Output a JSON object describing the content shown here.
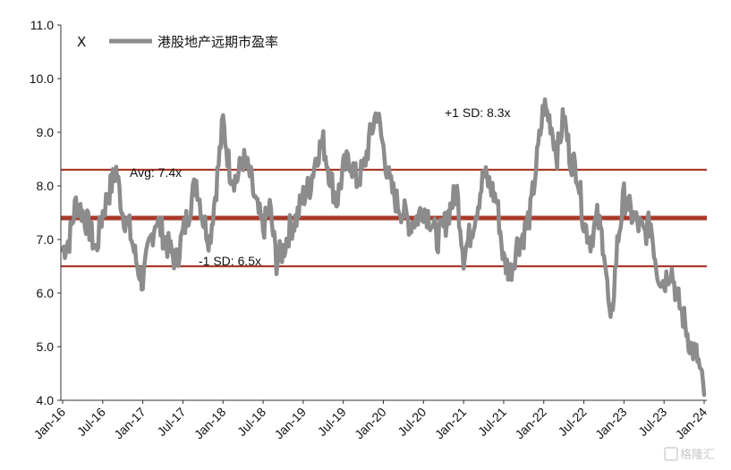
{
  "chart_data": {
    "type": "line",
    "title": "",
    "xlabel": "",
    "ylabel": "",
    "ylim": [
      4.0,
      11.0
    ],
    "y_ticks": [
      "11.0",
      "10.0",
      "9.0",
      "8.0",
      "7.0",
      "6.0",
      "5.0",
      "4.0"
    ],
    "x_ticks": [
      "Jan-16",
      "Jul-16",
      "Jan-17",
      "Jul-17",
      "Jan-18",
      "Jul-18",
      "Jan-19",
      "Jul-19",
      "Jan-20",
      "Jul-20",
      "Jan-21",
      "Jul-21",
      "Jan-22",
      "Jul-22",
      "Jan-23",
      "Jul-23",
      "Jan-24"
    ],
    "legend": {
      "marker": "X",
      "label": "港股地产远期市盈率",
      "placement": "top-left"
    },
    "series": [
      {
        "name": "港股地产远期市盈率",
        "color": "#8c8c8c",
        "x": [
          "2016-01",
          "2016-02",
          "2016-03",
          "2016-04",
          "2016-05",
          "2016-06",
          "2016-07",
          "2016-08",
          "2016-09",
          "2016-10",
          "2016-11",
          "2016-12",
          "2017-01",
          "2017-02",
          "2017-03",
          "2017-04",
          "2017-05",
          "2017-06",
          "2017-07",
          "2017-08",
          "2017-09",
          "2017-10",
          "2017-11",
          "2017-12",
          "2018-01",
          "2018-02",
          "2018-03",
          "2018-04",
          "2018-05",
          "2018-06",
          "2018-07",
          "2018-08",
          "2018-09",
          "2018-10",
          "2018-11",
          "2018-12",
          "2019-01",
          "2019-02",
          "2019-03",
          "2019-04",
          "2019-05",
          "2019-06",
          "2019-07",
          "2019-08",
          "2019-09",
          "2019-10",
          "2019-11",
          "2019-12",
          "2020-01",
          "2020-02",
          "2020-03",
          "2020-04",
          "2020-05",
          "2020-06",
          "2020-07",
          "2020-08",
          "2020-09",
          "2020-10",
          "2020-11",
          "2020-12",
          "2021-01",
          "2021-02",
          "2021-03",
          "2021-04",
          "2021-05",
          "2021-06",
          "2021-07",
          "2021-08",
          "2021-09",
          "2021-10",
          "2021-11",
          "2021-12",
          "2022-01",
          "2022-02",
          "2022-03",
          "2022-04",
          "2022-05",
          "2022-06",
          "2022-07",
          "2022-08",
          "2022-09",
          "2022-10",
          "2022-11",
          "2022-12",
          "2023-01",
          "2023-02",
          "2023-03",
          "2023-04",
          "2023-05",
          "2023-06",
          "2023-07",
          "2023-08",
          "2023-09",
          "2023-10",
          "2023-11",
          "2023-12",
          "2024-01"
        ],
        "values": [
          6.8,
          7.0,
          7.7,
          7.5,
          7.2,
          6.8,
          7.5,
          7.9,
          8.3,
          7.5,
          7.2,
          6.6,
          6.2,
          6.9,
          7.4,
          7.1,
          6.8,
          6.6,
          7.1,
          7.6,
          8.1,
          7.4,
          7.0,
          8.0,
          9.2,
          8.3,
          8.1,
          8.5,
          8.2,
          7.6,
          7.2,
          7.6,
          6.6,
          6.8,
          7.2,
          7.4,
          7.8,
          8.0,
          8.6,
          8.8,
          8.2,
          7.7,
          8.3,
          8.5,
          8.1,
          8.3,
          8.9,
          9.4,
          8.7,
          8.0,
          7.7,
          7.5,
          7.3,
          7.4,
          7.6,
          7.4,
          7.0,
          7.2,
          7.6,
          7.9,
          6.7,
          7.1,
          7.6,
          8.2,
          8.0,
          7.7,
          6.6,
          6.4,
          6.9,
          7.1,
          7.5,
          8.5,
          9.5,
          9.2,
          8.6,
          9.3,
          8.5,
          8.3,
          7.3,
          7.0,
          7.4,
          6.9,
          5.3,
          6.9,
          7.8,
          7.5,
          7.3,
          7.1,
          7.3,
          6.4,
          6.2,
          6.5,
          5.9,
          5.5,
          5.0,
          4.8,
          4.1
        ],
        "annotations": [
          "+1 SD: 8.3x",
          "Avg: 7.4x",
          "-1 SD: 6.5x"
        ]
      }
    ],
    "reference_lines": [
      {
        "label": "+1 SD: 8.3x",
        "value": 8.3,
        "color": "#a83a2a"
      },
      {
        "label": "Avg: 7.4x",
        "value": 7.4,
        "color": "#a83a2a"
      },
      {
        "label": "-1 SD: 6.5x",
        "value": 6.5,
        "color": "#a83a2a"
      }
    ],
    "grid": false
  },
  "watermark": "格隆汇"
}
